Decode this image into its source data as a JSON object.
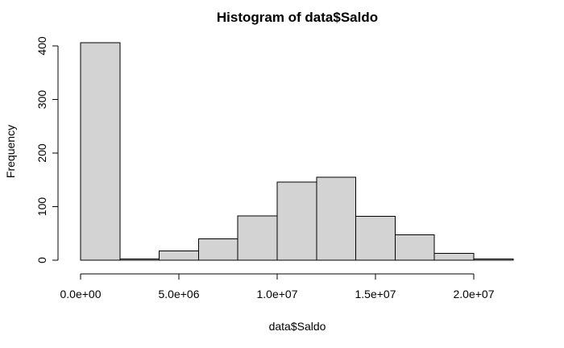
{
  "chart_data": {
    "type": "bar",
    "title": "Histogram of data$Saldo",
    "xlabel": "data$Saldo",
    "ylabel": "Frequency",
    "bin_edges": [
      0,
      2000000,
      4000000,
      6000000,
      8000000,
      10000000,
      12000000,
      14000000,
      16000000,
      18000000,
      20000000,
      22000000
    ],
    "values": [
      406,
      2,
      17,
      40,
      83,
      146,
      155,
      82,
      47,
      13,
      2
    ],
    "bar_color": "#d3d3d3",
    "grid": false,
    "xlim": [
      0,
      22000000
    ],
    "ylim": [
      0,
      410
    ],
    "x_ticks": [
      {
        "value": 0,
        "label": "0.0e+00"
      },
      {
        "value": 5000000,
        "label": "5.0e+06"
      },
      {
        "value": 10000000,
        "label": "1.0e+07"
      },
      {
        "value": 15000000,
        "label": "1.5e+07"
      },
      {
        "value": 20000000,
        "label": "2.0e+07"
      }
    ],
    "y_ticks": [
      {
        "value": 0,
        "label": "0"
      },
      {
        "value": 100,
        "label": "100"
      },
      {
        "value": 200,
        "label": "200"
      },
      {
        "value": 300,
        "label": "300"
      },
      {
        "value": 400,
        "label": "400"
      }
    ]
  }
}
